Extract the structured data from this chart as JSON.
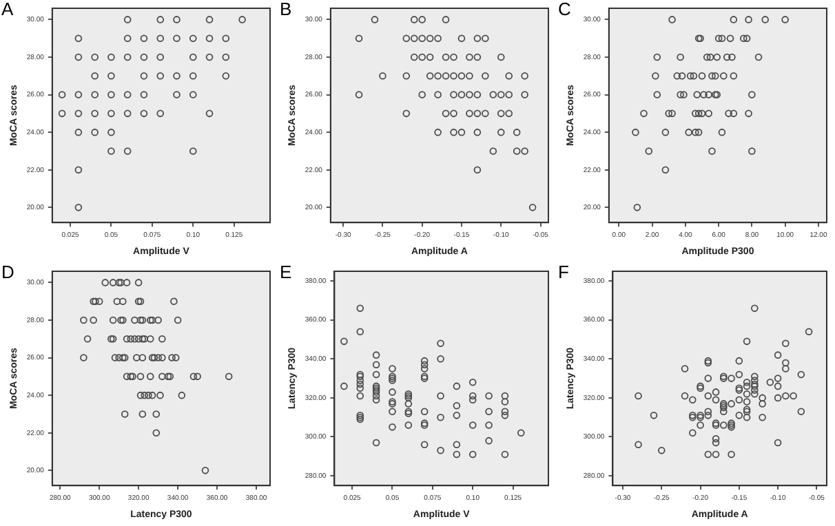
{
  "chart_data": [
    {
      "type": "scatter",
      "title": "A",
      "xlabel": "Amplitude V",
      "ylabel": "MoCA scores",
      "color": "#4d4d4d",
      "marker": "circle",
      "xlim": [
        0.014,
        0.147
      ],
      "ylim": [
        19.2,
        30.6
      ],
      "xticks": [
        {
          "value": 0.025,
          "label": "0.025"
        },
        {
          "value": 0.05,
          "label": "0.05"
        },
        {
          "value": 0.075,
          "label": "0.075"
        },
        {
          "value": 0.1,
          "label": "0.10"
        },
        {
          "value": 0.125,
          "label": "0.125"
        }
      ],
      "yticks": [
        {
          "value": 20,
          "label": "20.00"
        },
        {
          "value": 22,
          "label": "22.00"
        },
        {
          "value": 24,
          "label": "24.00"
        },
        {
          "value": 26,
          "label": "26.00"
        },
        {
          "value": 28,
          "label": "28.00"
        },
        {
          "value": 30,
          "label": "30.00"
        }
      ],
      "x": [
        0.06,
        0.08,
        0.09,
        0.11,
        0.13,
        0.03,
        0.06,
        0.07,
        0.08,
        0.09,
        0.1,
        0.11,
        0.12,
        0.03,
        0.04,
        0.05,
        0.06,
        0.07,
        0.08,
        0.1,
        0.11,
        0.12,
        0.04,
        0.05,
        0.07,
        0.08,
        0.09,
        0.1,
        0.12,
        0.02,
        0.03,
        0.04,
        0.05,
        0.06,
        0.07,
        0.09,
        0.1,
        0.02,
        0.03,
        0.04,
        0.05,
        0.06,
        0.07,
        0.08,
        0.11,
        0.03,
        0.04,
        0.05,
        0.05,
        0.06,
        0.1,
        0.03,
        0.03
      ],
      "values": [
        30,
        30,
        30,
        30,
        30,
        29,
        29,
        29,
        29,
        29,
        29,
        29,
        29,
        28,
        28,
        28,
        28,
        28,
        28,
        28,
        28,
        28,
        27,
        27,
        27,
        27,
        27,
        27,
        27,
        26,
        26,
        26,
        26,
        26,
        26,
        26,
        26,
        25,
        25,
        25,
        25,
        25,
        25,
        25,
        25,
        24,
        24,
        24,
        23,
        23,
        23,
        22,
        20
      ]
    },
    {
      "type": "scatter",
      "title": "B",
      "xlabel": "Amplitude A",
      "ylabel": "MoCA scores",
      "color": "#4d4d4d",
      "marker": "circle",
      "xlim": [
        -0.316,
        -0.04
      ],
      "ylim": [
        19.2,
        30.6
      ],
      "xticks": [
        {
          "value": -0.3,
          "label": "-0.30"
        },
        {
          "value": -0.25,
          "label": "-0.25"
        },
        {
          "value": -0.2,
          "label": "-0.20"
        },
        {
          "value": -0.15,
          "label": "-0.15"
        },
        {
          "value": -0.1,
          "label": "-0.10"
        },
        {
          "value": -0.05,
          "label": "-0.05"
        }
      ],
      "yticks": [
        {
          "value": 20,
          "label": "20.00"
        },
        {
          "value": 22,
          "label": "22.00"
        },
        {
          "value": 24,
          "label": "24.00"
        },
        {
          "value": 26,
          "label": "26.00"
        },
        {
          "value": 28,
          "label": "28.00"
        },
        {
          "value": 30,
          "label": "30.00"
        }
      ],
      "x": [
        -0.26,
        -0.21,
        -0.2,
        -0.17,
        -0.28,
        -0.22,
        -0.21,
        -0.2,
        -0.19,
        -0.18,
        -0.15,
        -0.13,
        -0.12,
        -0.21,
        -0.2,
        -0.19,
        -0.17,
        -0.16,
        -0.14,
        -0.13,
        -0.1,
        -0.25,
        -0.22,
        -0.19,
        -0.18,
        -0.17,
        -0.16,
        -0.15,
        -0.14,
        -0.12,
        -0.09,
        -0.07,
        -0.28,
        -0.2,
        -0.18,
        -0.16,
        -0.15,
        -0.14,
        -0.13,
        -0.11,
        -0.1,
        -0.09,
        -0.07,
        -0.22,
        -0.17,
        -0.16,
        -0.14,
        -0.13,
        -0.12,
        -0.1,
        -0.09,
        -0.18,
        -0.16,
        -0.15,
        -0.13,
        -0.1,
        -0.08,
        -0.11,
        -0.08,
        -0.07,
        -0.13,
        -0.06
      ],
      "values": [
        30,
        30,
        30,
        30,
        29,
        29,
        29,
        29,
        29,
        29,
        29,
        29,
        29,
        28,
        28,
        28,
        28,
        28,
        28,
        28,
        28,
        27,
        27,
        27,
        27,
        27,
        27,
        27,
        27,
        27,
        27,
        27,
        26,
        26,
        26,
        26,
        26,
        26,
        26,
        26,
        26,
        26,
        26,
        25,
        25,
        25,
        25,
        25,
        25,
        25,
        25,
        24,
        24,
        24,
        24,
        24,
        24,
        23,
        23,
        23,
        22,
        20
      ]
    },
    {
      "type": "scatter",
      "title": "C",
      "xlabel": "Amplitude P300",
      "ylabel": "MoCA scores",
      "color": "#4d4d4d",
      "marker": "circle",
      "xlim": [
        -0.6,
        12.5
      ],
      "ylim": [
        19.2,
        30.6
      ],
      "xticks": [
        {
          "value": 0,
          "label": "0.00"
        },
        {
          "value": 2,
          "label": "2.00"
        },
        {
          "value": 4,
          "label": "4.00"
        },
        {
          "value": 6,
          "label": "6.00"
        },
        {
          "value": 8,
          "label": "8.00"
        },
        {
          "value": 10,
          "label": "10.00"
        },
        {
          "value": 12,
          "label": "12.00"
        }
      ],
      "yticks": [
        {
          "value": 20,
          "label": "20.00"
        },
        {
          "value": 22,
          "label": "22.00"
        },
        {
          "value": 24,
          "label": "24.00"
        },
        {
          "value": 26,
          "label": "26.00"
        },
        {
          "value": 28,
          "label": "28.00"
        },
        {
          "value": 30,
          "label": "30.00"
        }
      ],
      "x": [
        3.2,
        6.9,
        7.8,
        8.8,
        10.0,
        4.8,
        4.9,
        6.0,
        6.2,
        6.7,
        7.5,
        7.7,
        2.3,
        3.7,
        5.3,
        5.5,
        5.9,
        6.5,
        6.8,
        8.4,
        2.2,
        3.5,
        3.8,
        4.3,
        4.5,
        5.0,
        5.6,
        5.8,
        6.3,
        6.9,
        2.3,
        3.7,
        3.9,
        4.7,
        5.1,
        5.4,
        5.8,
        5.9,
        8.0,
        1.5,
        3.0,
        3.2,
        4.6,
        4.8,
        5.0,
        5.4,
        6.6,
        6.9,
        7.8,
        1.0,
        2.8,
        4.2,
        4.6,
        4.8,
        6.2,
        1.8,
        5.6,
        8.0,
        2.8,
        1.1
      ],
      "values": [
        30,
        30,
        30,
        30,
        30,
        29,
        29,
        29,
        29,
        29,
        29,
        29,
        28,
        28,
        28,
        28,
        28,
        28,
        28,
        28,
        27,
        27,
        27,
        27,
        27,
        27,
        27,
        27,
        27,
        27,
        26,
        26,
        26,
        26,
        26,
        26,
        26,
        26,
        26,
        25,
        25,
        25,
        25,
        25,
        25,
        25,
        25,
        25,
        25,
        24,
        24,
        24,
        24,
        24,
        24,
        23,
        23,
        23,
        22,
        20
      ]
    },
    {
      "type": "scatter",
      "title": "D",
      "xlabel": "Latency P300",
      "ylabel": "MoCA scores",
      "color": "#4d4d4d",
      "marker": "circle",
      "xlim": [
        276,
        387
      ],
      "ylim": [
        19.2,
        30.6
      ],
      "xticks": [
        {
          "value": 280,
          "label": "280.00"
        },
        {
          "value": 300,
          "label": "300.00"
        },
        {
          "value": 320,
          "label": "320.00"
        },
        {
          "value": 340,
          "label": "340.00"
        },
        {
          "value": 360,
          "label": "360.00"
        },
        {
          "value": 380,
          "label": "380.00"
        }
      ],
      "yticks": [
        {
          "value": 20,
          "label": "20.00"
        },
        {
          "value": 22,
          "label": "22.00"
        },
        {
          "value": 24,
          "label": "24.00"
        },
        {
          "value": 26,
          "label": "26.00"
        },
        {
          "value": 28,
          "label": "28.00"
        },
        {
          "value": 30,
          "label": "30.00"
        }
      ],
      "x": [
        303,
        307,
        310,
        311,
        314,
        320,
        297,
        298,
        300,
        309,
        312,
        320,
        321,
        338,
        292,
        297,
        307,
        311,
        312,
        318,
        321,
        322,
        326,
        327,
        330,
        340,
        294,
        306,
        307,
        314,
        316,
        318,
        320,
        322,
        323,
        326,
        332,
        292,
        308,
        310,
        312,
        313,
        319,
        322,
        327,
        328,
        330,
        332,
        337,
        339,
        314,
        316,
        317,
        321,
        326,
        332,
        335,
        336,
        348,
        350,
        366,
        321,
        323,
        325,
        327,
        331,
        342,
        313,
        322,
        329,
        329,
        354
      ],
      "values": [
        30,
        30,
        30,
        30,
        30,
        30,
        29,
        29,
        29,
        29,
        29,
        29,
        29,
        29,
        28,
        28,
        28,
        28,
        28,
        28,
        28,
        28,
        28,
        28,
        28,
        28,
        27,
        27,
        27,
        27,
        27,
        27,
        27,
        27,
        27,
        27,
        27,
        26,
        26,
        26,
        26,
        26,
        26,
        26,
        26,
        26,
        26,
        26,
        26,
        26,
        25,
        25,
        25,
        25,
        25,
        25,
        25,
        25,
        25,
        25,
        25,
        24,
        24,
        24,
        24,
        24,
        24,
        23,
        23,
        23,
        22,
        20
      ]
    },
    {
      "type": "scatter",
      "title": "E",
      "xlabel": "Amplitude V",
      "ylabel": "Latency P300",
      "color": "#4d4d4d",
      "marker": "circle",
      "xlim": [
        0.014,
        0.147
      ],
      "ylim": [
        275,
        385
      ],
      "xticks": [
        {
          "value": 0.025,
          "label": "0.025"
        },
        {
          "value": 0.05,
          "label": "0.05"
        },
        {
          "value": 0.075,
          "label": "0.075"
        },
        {
          "value": 0.1,
          "label": "0.10"
        },
        {
          "value": 0.125,
          "label": "0.125"
        }
      ],
      "yticks": [
        {
          "value": 280,
          "label": "280.00"
        },
        {
          "value": 300,
          "label": "300.00"
        },
        {
          "value": 320,
          "label": "320.00"
        },
        {
          "value": 340,
          "label": "340.00"
        },
        {
          "value": 360,
          "label": "360.00"
        },
        {
          "value": 380,
          "label": "380.00"
        }
      ],
      "x": [
        0.02,
        0.02,
        0.03,
        0.03,
        0.03,
        0.03,
        0.03,
        0.03,
        0.03,
        0.03,
        0.03,
        0.03,
        0.03,
        0.04,
        0.04,
        0.04,
        0.04,
        0.04,
        0.04,
        0.04,
        0.04,
        0.04,
        0.04,
        0.05,
        0.05,
        0.05,
        0.05,
        0.05,
        0.05,
        0.05,
        0.05,
        0.05,
        0.06,
        0.06,
        0.06,
        0.06,
        0.06,
        0.06,
        0.06,
        0.07,
        0.07,
        0.07,
        0.07,
        0.07,
        0.07,
        0.07,
        0.07,
        0.07,
        0.08,
        0.08,
        0.08,
        0.08,
        0.08,
        0.09,
        0.09,
        0.09,
        0.09,
        0.09,
        0.1,
        0.1,
        0.1,
        0.1,
        0.1,
        0.11,
        0.11,
        0.11,
        0.11,
        0.12,
        0.12,
        0.12,
        0.12,
        0.12,
        0.13
      ],
      "values": [
        349,
        326,
        366,
        354,
        332,
        331,
        329,
        327,
        325,
        321,
        311,
        310,
        309,
        342,
        337,
        332,
        326,
        325,
        324,
        323,
        321,
        319,
        297,
        335,
        331,
        330,
        329,
        323,
        318,
        317,
        313,
        305,
        322,
        321,
        320,
        317,
        313,
        312,
        306,
        339,
        337,
        335,
        331,
        330,
        313,
        307,
        306,
        296,
        348,
        340,
        321,
        310,
        293,
        326,
        316,
        311,
        296,
        291,
        328,
        321,
        319,
        306,
        291,
        321,
        313,
        306,
        298,
        321,
        318,
        313,
        311,
        291,
        302
      ]
    },
    {
      "type": "scatter",
      "title": "F",
      "xlabel": "Amplitude A",
      "ylabel": "Latency P300",
      "color": "#4d4d4d",
      "marker": "circle",
      "xlim": [
        -0.313,
        -0.037
      ],
      "ylim": [
        275,
        385
      ],
      "xticks": [
        {
          "value": -0.3,
          "label": "-0.30"
        },
        {
          "value": -0.25,
          "label": "-0.25"
        },
        {
          "value": -0.2,
          "label": "-0.20"
        },
        {
          "value": -0.15,
          "label": "-0.15"
        },
        {
          "value": -0.1,
          "label": "-0.10"
        },
        {
          "value": -0.05,
          "label": "-0.05"
        }
      ],
      "yticks": [
        {
          "value": 280,
          "label": "280.00"
        },
        {
          "value": 300,
          "label": "300.00"
        },
        {
          "value": 320,
          "label": "320.00"
        },
        {
          "value": 340,
          "label": "340.00"
        },
        {
          "value": 360,
          "label": "360.00"
        },
        {
          "value": 380,
          "label": "380.00"
        }
      ],
      "x": [
        -0.28,
        -0.28,
        -0.26,
        -0.25,
        -0.22,
        -0.22,
        -0.21,
        -0.21,
        -0.21,
        -0.21,
        -0.2,
        -0.2,
        -0.2,
        -0.2,
        -0.2,
        -0.19,
        -0.19,
        -0.19,
        -0.19,
        -0.19,
        -0.19,
        -0.19,
        -0.18,
        -0.18,
        -0.18,
        -0.18,
        -0.18,
        -0.18,
        -0.18,
        -0.17,
        -0.17,
        -0.17,
        -0.17,
        -0.17,
        -0.17,
        -0.17,
        -0.16,
        -0.16,
        -0.16,
        -0.16,
        -0.16,
        -0.16,
        -0.15,
        -0.15,
        -0.15,
        -0.15,
        -0.15,
        -0.15,
        -0.14,
        -0.14,
        -0.14,
        -0.14,
        -0.14,
        -0.14,
        -0.14,
        -0.14,
        -0.13,
        -0.13,
        -0.13,
        -0.13,
        -0.13,
        -0.13,
        -0.13,
        -0.12,
        -0.12,
        -0.12,
        -0.11,
        -0.1,
        -0.1,
        -0.1,
        -0.1,
        -0.1,
        -0.09,
        -0.09,
        -0.09,
        -0.09,
        -0.08,
        -0.07,
        -0.07,
        -0.06
      ],
      "values": [
        321,
        296,
        311,
        293,
        335,
        321,
        319,
        311,
        310,
        302,
        326,
        325,
        311,
        310,
        306,
        339,
        338,
        330,
        321,
        313,
        311,
        291,
        323,
        319,
        307,
        306,
        299,
        297,
        291,
        331,
        330,
        317,
        316,
        315,
        313,
        306,
        330,
        317,
        307,
        306,
        305,
        291,
        339,
        332,
        325,
        324,
        319,
        311,
        349,
        328,
        326,
        322,
        318,
        314,
        313,
        310,
        366,
        331,
        329,
        327,
        326,
        324,
        322,
        320,
        317,
        310,
        328,
        342,
        330,
        326,
        320,
        297,
        348,
        338,
        335,
        321,
        321,
        332,
        313,
        354
      ]
    }
  ]
}
